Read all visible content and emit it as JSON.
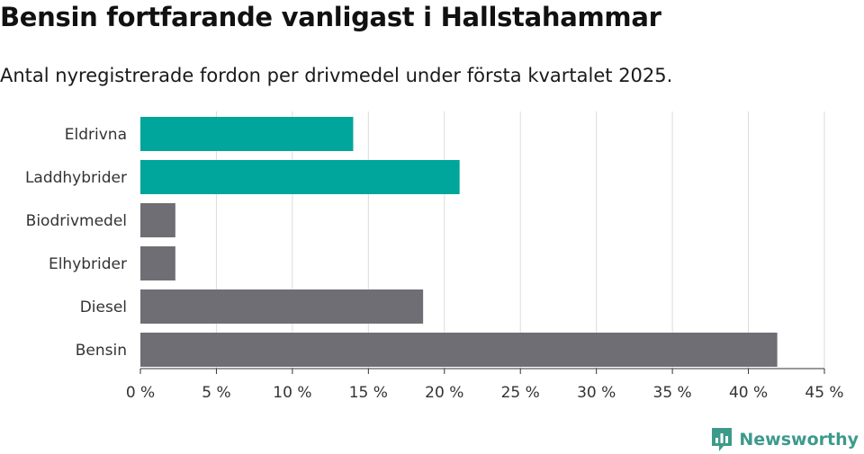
{
  "title": "Bensin fortfarande vanligast i Hallstahammar",
  "subtitle": "Antal nyregistrerade fordon per drivmedel under första kvartalet 2025.",
  "brand": {
    "name": "Newsworthy",
    "icon": "newsworthy-logo-icon",
    "color": "#3d9a8b"
  },
  "chart_data": {
    "type": "bar",
    "orientation": "horizontal",
    "categories": [
      "Eldrivna",
      "Laddhybrider",
      "Biodrivmedel",
      "Elhybrider",
      "Diesel",
      "Bensin"
    ],
    "values": [
      14.0,
      21.0,
      2.3,
      2.3,
      18.6,
      41.9
    ],
    "colors": [
      "#00a59b",
      "#00a59b",
      "#6f6e75",
      "#6f6e75",
      "#6f6e75",
      "#6f6e75"
    ],
    "xlim": [
      0,
      45
    ],
    "xticks": [
      0,
      5,
      10,
      15,
      20,
      25,
      30,
      35,
      40,
      45
    ],
    "xtick_labels": [
      "0 %",
      "5 %",
      "10 %",
      "15 %",
      "20 %",
      "25 %",
      "30 %",
      "35 %",
      "40 %",
      "45 %"
    ],
    "grid": true
  }
}
